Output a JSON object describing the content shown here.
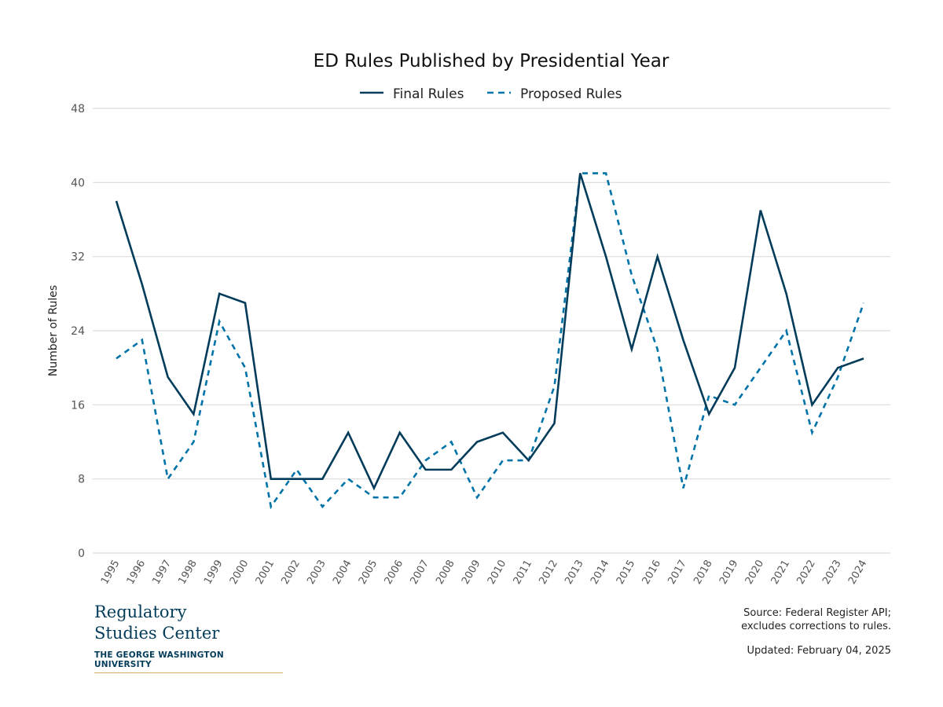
{
  "chart_data": {
    "type": "line",
    "title": "ED Rules Published by Presidential Year",
    "xlabel": "",
    "ylabel": "Number of Rules",
    "ylim": [
      0,
      48
    ],
    "yticks": [
      0,
      8,
      16,
      24,
      32,
      40,
      48
    ],
    "grid": true,
    "legend_position": "top-center",
    "x": [
      "1995",
      "1996",
      "1997",
      "1998",
      "1999",
      "2000",
      "2001",
      "2002",
      "2003",
      "2004",
      "2005",
      "2006",
      "2007",
      "2008",
      "2009",
      "2010",
      "2011",
      "2012",
      "2013",
      "2014",
      "2015",
      "2016",
      "2017",
      "2018",
      "2019",
      "2020",
      "2021",
      "2022",
      "2023",
      "2024"
    ],
    "series": [
      {
        "name": "Final Rules",
        "color": "#033c5a",
        "style": "solid",
        "values": [
          38,
          29,
          19,
          15,
          28,
          27,
          8,
          8,
          8,
          13,
          7,
          13,
          9,
          9,
          12,
          13,
          10,
          14,
          41,
          32,
          22,
          32,
          23,
          15,
          20,
          37,
          28,
          16,
          20,
          21
        ]
      },
      {
        "name": "Proposed Rules",
        "color": "#0073a8",
        "style": "dashed",
        "values": [
          21,
          23,
          8,
          12,
          25,
          20,
          5,
          9,
          5,
          8,
          6,
          6,
          10,
          12,
          6,
          10,
          10,
          18,
          41,
          41,
          30,
          22,
          7,
          17,
          16,
          20,
          24,
          13,
          19,
          27
        ]
      }
    ]
  },
  "logo": {
    "line1": "Regulatory",
    "line2": "Studies Center",
    "line3": "THE GEORGE WASHINGTON UNIVERSITY"
  },
  "footer": {
    "source": "Source: Federal Register API;",
    "source2": "excludes corrections to rules.",
    "updated": "Updated: February 04, 2025"
  }
}
